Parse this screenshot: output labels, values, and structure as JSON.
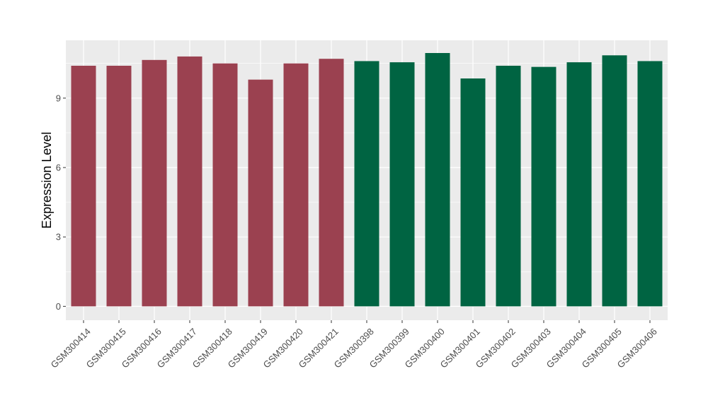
{
  "chart_data": {
    "type": "bar",
    "title": "",
    "xlabel": "",
    "ylabel": "Expression Level",
    "ylim": [
      -0.6,
      11.5
    ],
    "yticks": [
      0,
      3,
      6,
      9
    ],
    "grid": true,
    "legend": "none",
    "colors": {
      "group1": "#9b4150",
      "group2": "#006442",
      "panel": "#ebebeb",
      "grid": "#ffffff"
    },
    "categories": [
      "GSM300414",
      "GSM300415",
      "GSM300416",
      "GSM300417",
      "GSM300418",
      "GSM300419",
      "GSM300420",
      "GSM300421",
      "GSM300398",
      "GSM300399",
      "GSM300400",
      "GSM300401",
      "GSM300402",
      "GSM300403",
      "GSM300404",
      "GSM300405",
      "GSM300406"
    ],
    "values": [
      10.4,
      10.4,
      10.65,
      10.8,
      10.5,
      9.8,
      10.5,
      10.7,
      10.6,
      10.55,
      10.95,
      9.85,
      10.4,
      10.35,
      10.55,
      10.85,
      10.6
    ],
    "groups": [
      "group1",
      "group1",
      "group1",
      "group1",
      "group1",
      "group1",
      "group1",
      "group1",
      "group2",
      "group2",
      "group2",
      "group2",
      "group2",
      "group2",
      "group2",
      "group2",
      "group2"
    ]
  }
}
